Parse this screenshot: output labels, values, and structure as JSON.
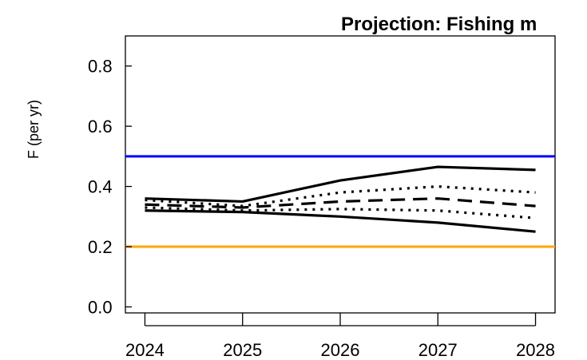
{
  "chart_data": {
    "type": "line",
    "title": "Projection:  Fishing m",
    "xlabel": "",
    "ylabel": "F (per yr)",
    "xlim": [
      2023.8,
      2028.2
    ],
    "ylim": [
      -0.02,
      0.9
    ],
    "x": [
      2024,
      2025,
      2026,
      2027,
      2028
    ],
    "x_ticks": [
      "2024",
      "2025",
      "2026",
      "2027",
      "2028"
    ],
    "y_ticks": [
      0.0,
      0.2,
      0.4,
      0.6,
      0.8
    ],
    "y_tick_labels": [
      "0.0",
      "0.2",
      "0.4",
      "0.6",
      "0.8"
    ],
    "reference_lines": [
      {
        "y": 0.5,
        "color": "#0000ff"
      },
      {
        "y": 0.2,
        "color": "#ffa500"
      }
    ],
    "series": [
      {
        "style": "solid",
        "values": [
          0.36,
          0.35,
          0.42,
          0.465,
          0.455
        ]
      },
      {
        "style": "dotted",
        "values": [
          0.355,
          0.335,
          0.38,
          0.4,
          0.38
        ]
      },
      {
        "style": "dashed",
        "values": [
          0.34,
          0.33,
          0.35,
          0.36,
          0.335
        ]
      },
      {
        "style": "dotted",
        "values": [
          0.33,
          0.32,
          0.325,
          0.32,
          0.295
        ]
      },
      {
        "style": "solid",
        "values": [
          0.32,
          0.315,
          0.3,
          0.28,
          0.25
        ]
      }
    ],
    "grid": false,
    "legend": "none"
  }
}
